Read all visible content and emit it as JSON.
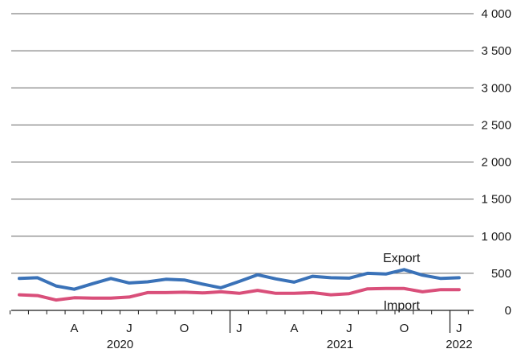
{
  "chart_data": {
    "type": "line",
    "title": "",
    "xlabel": "",
    "ylabel": "",
    "ylim": [
      0,
      4000
    ],
    "y_ticks": [
      0,
      500,
      1000,
      1500,
      2000,
      2500,
      3000,
      3500,
      4000
    ],
    "y_tick_labels": [
      "0",
      "500",
      "1 000",
      "1 500",
      "2 000",
      "2 500",
      "3 000",
      "3 500",
      "4 000"
    ],
    "grid": "horizontal",
    "y_axis_side": "right",
    "x": [
      "2020-01",
      "2020-02",
      "2020-03",
      "2020-04",
      "2020-05",
      "2020-06",
      "2020-07",
      "2020-08",
      "2020-09",
      "2020-10",
      "2020-11",
      "2020-12",
      "2021-01",
      "2021-02",
      "2021-03",
      "2021-04",
      "2021-05",
      "2021-06",
      "2021-07",
      "2021-08",
      "2021-09",
      "2021-10",
      "2021-11",
      "2021-12",
      "2022-01"
    ],
    "x_tick_labels": [
      {
        "month": "2020-04",
        "label": "A"
      },
      {
        "month": "2020-07",
        "label": "J"
      },
      {
        "month": "2020-10",
        "label": "O"
      },
      {
        "month": "2021-01",
        "label": "J"
      },
      {
        "month": "2021-04",
        "label": "A"
      },
      {
        "month": "2021-07",
        "label": "J"
      },
      {
        "month": "2021-10",
        "label": "O"
      },
      {
        "month": "2022-01",
        "label": "J"
      }
    ],
    "year_labels": [
      {
        "year": "2020",
        "span": [
          "2020-01",
          "2020-12"
        ]
      },
      {
        "year": "2021",
        "span": [
          "2021-01",
          "2021-12"
        ]
      },
      {
        "year": "2022",
        "span": [
          "2022-01",
          "2022-01"
        ]
      }
    ],
    "series": [
      {
        "name": "Export",
        "color": "#3a72b8",
        "values": [
          430,
          440,
          330,
          285,
          360,
          430,
          370,
          385,
          420,
          410,
          355,
          305,
          390,
          480,
          425,
          380,
          460,
          440,
          435,
          500,
          490,
          550,
          475,
          430,
          440
        ]
      },
      {
        "name": "Import",
        "color": "#d94f7a",
        "values": [
          210,
          200,
          140,
          170,
          165,
          165,
          180,
          240,
          240,
          245,
          235,
          250,
          230,
          270,
          230,
          230,
          240,
          210,
          225,
          290,
          295,
          295,
          250,
          280,
          280
        ]
      }
    ]
  },
  "colors": {
    "grid": "#666666",
    "axis": "#1a1a1a",
    "background": "#ffffff"
  }
}
